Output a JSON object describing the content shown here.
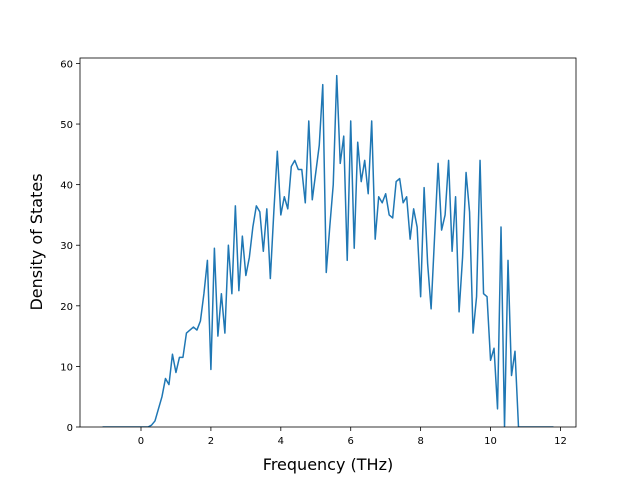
{
  "chart_data": {
    "type": "line",
    "x_label": "Frequency (THz)",
    "y_label": "Density of States",
    "x": [
      -1.1,
      -1,
      -0.9,
      -0.8,
      -0.7,
      -0.6,
      -0.5,
      -0.4,
      -0.3,
      -0.2,
      -0.1,
      0,
      0.1,
      0.2,
      0.3,
      0.4,
      0.5,
      0.6,
      0.7,
      0.8,
      0.9,
      1,
      1.1,
      1.2,
      1.3,
      1.4,
      1.5,
      1.6,
      1.7,
      1.8,
      1.9,
      2,
      2.1,
      2.2,
      2.3,
      2.4,
      2.5,
      2.6,
      2.7,
      2.8,
      2.9,
      3,
      3.1,
      3.2,
      3.3,
      3.4,
      3.5,
      3.6,
      3.7,
      3.8,
      3.9,
      4,
      4.1,
      4.2,
      4.3,
      4.4,
      4.5,
      4.6,
      4.7,
      4.8,
      4.9,
      5,
      5.1,
      5.2,
      5.3,
      5.4,
      5.5,
      5.6,
      5.7,
      5.8,
      5.9,
      6,
      6.1,
      6.2,
      6.3,
      6.4,
      6.5,
      6.6,
      6.7,
      6.8,
      6.9,
      7,
      7.1,
      7.2,
      7.3,
      7.4,
      7.5,
      7.6,
      7.7,
      7.8,
      7.9,
      8,
      8.1,
      8.2,
      8.3,
      8.4,
      8.5,
      8.6,
      8.7,
      8.8,
      8.9,
      9,
      9.1,
      9.2,
      9.3,
      9.4,
      9.5,
      9.6,
      9.7,
      9.8,
      9.9,
      10,
      10.1,
      10.2,
      10.3,
      10.4,
      10.5,
      10.6,
      10.7,
      10.8,
      10.9,
      11,
      11.1,
      11.2,
      11.3,
      11.4,
      11.5,
      11.6,
      11.7,
      11.8
    ],
    "series": [
      {
        "color": "#1f77b4",
        "values": [
          0,
          0,
          0,
          0,
          0,
          0,
          0,
          0,
          0,
          0,
          0,
          0,
          0,
          0,
          0.3,
          1,
          3,
          5,
          8,
          7,
          12,
          9,
          11.5,
          11.5,
          15.5,
          16,
          16.5,
          16,
          17.5,
          22,
          27.5,
          9.5,
          29.5,
          15,
          22,
          15.5,
          30,
          22,
          36.5,
          22.5,
          31.5,
          25,
          28,
          33,
          36.5,
          35.5,
          29,
          36,
          24.5,
          35.5,
          45.5,
          35,
          38,
          36,
          43,
          44,
          42.5,
          42.5,
          37,
          50.5,
          37.5,
          42,
          46.5,
          56.5,
          25.5,
          33,
          40,
          58,
          43.5,
          48,
          27.5,
          50.5,
          29.5,
          47,
          40.5,
          44,
          38.5,
          50.5,
          31,
          38,
          37,
          38.5,
          35,
          34.5,
          40.5,
          41,
          37,
          38,
          31,
          36,
          33,
          21.5,
          39.5,
          27,
          19.5,
          31.5,
          43.5,
          32.5,
          35,
          44,
          29,
          38,
          19,
          28,
          42,
          35.5,
          15.5,
          21.5,
          44,
          22,
          21.5,
          11,
          13,
          3,
          33,
          0,
          27.5,
          8.5,
          12.5,
          0,
          0,
          0,
          0,
          0,
          0,
          0,
          0,
          0,
          0,
          0
        ]
      }
    ],
    "xlim": [
      -1.745,
      12.445
    ],
    "ylim": [
      0,
      60.9
    ],
    "xticks": [
      0,
      2,
      4,
      6,
      8,
      10,
      12
    ],
    "yticks": [
      0,
      10,
      20,
      30,
      40,
      50,
      60
    ]
  }
}
